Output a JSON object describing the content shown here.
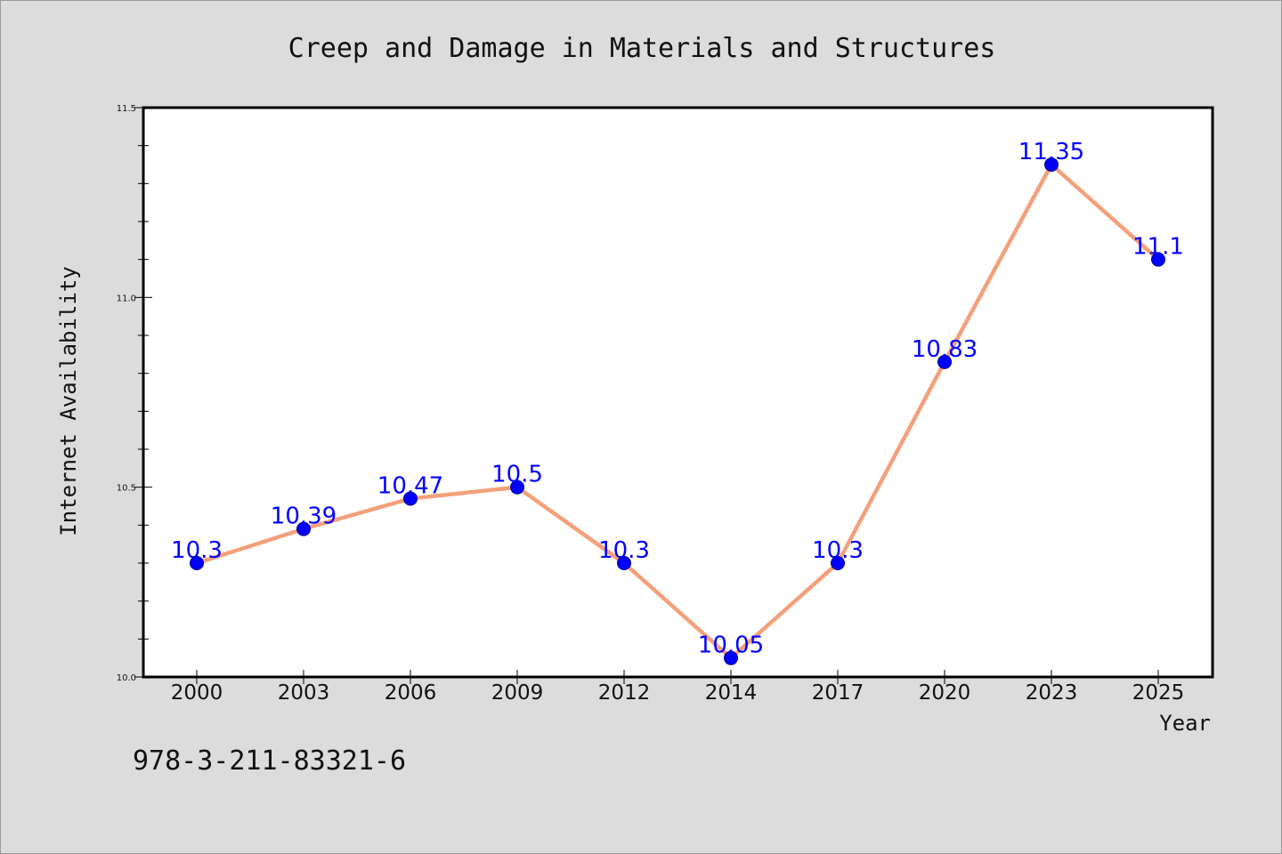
{
  "chart_data": {
    "type": "line",
    "title": "Creep and Damage in Materials and Structures",
    "xlabel": "Year",
    "ylabel": "Internet Availability",
    "categories": [
      "2000",
      "2003",
      "2006",
      "2009",
      "2012",
      "2014",
      "2017",
      "2020",
      "2023",
      "2025"
    ],
    "series": [
      {
        "values": [
          10.3,
          10.39,
          10.47,
          10.5,
          10.3,
          10.05,
          10.3,
          10.83,
          11.35,
          11.1
        ],
        "data_labels": [
          "10.3",
          "10.39",
          "10.47",
          "10.5",
          "10.3",
          "10.05",
          "10.3",
          "10.83",
          "11.35",
          "11.1"
        ],
        "line_color": "#f4a07a",
        "marker_color": "#0000ff"
      }
    ],
    "ylim": [
      10.0,
      11.5
    ],
    "yticks": [
      "10.0",
      "10.5",
      "11.0",
      "11.5"
    ],
    "grid": false,
    "legend": "none"
  },
  "footer": {
    "text": "978-3-211-83321-6"
  },
  "colors": {
    "background": "#dcdcdc",
    "plot_background": "#ffffff",
    "label_color": "#0000ff"
  }
}
